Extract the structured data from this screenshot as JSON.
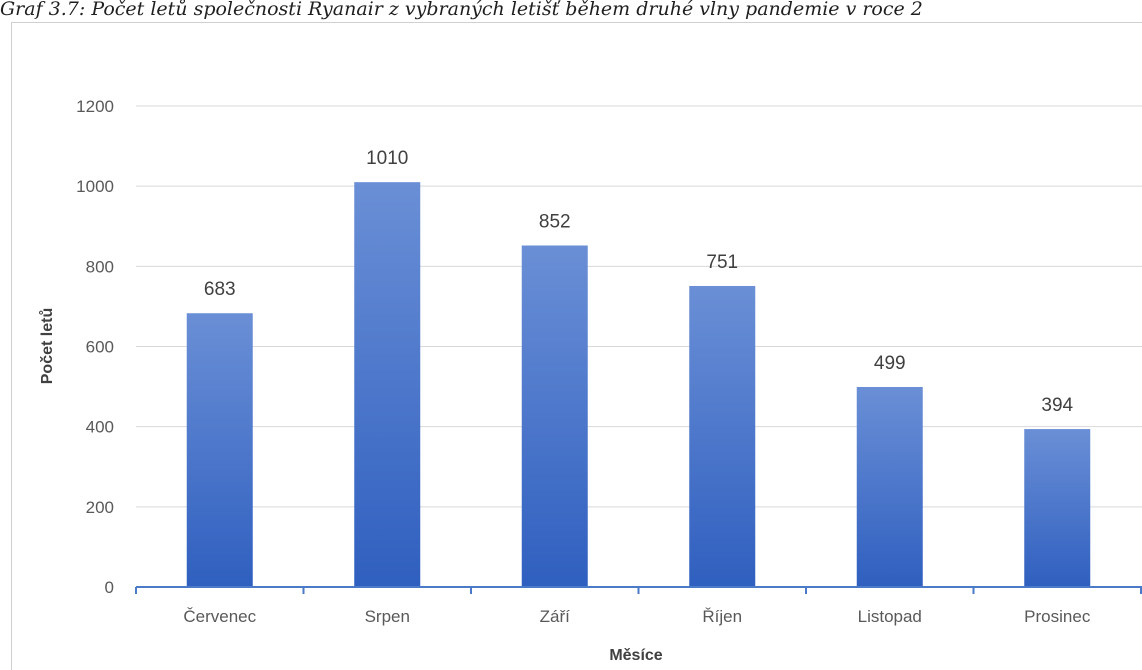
{
  "caption": "Graf 3.7: Počet letů společnosti Ryanair z vybraných letišť během druhé vlny pandemie v roce 2",
  "chart_data": {
    "type": "bar",
    "categories": [
      "Červenec",
      "Srpen",
      "Září",
      "Říjen",
      "Listopad",
      "Prosinec"
    ],
    "values": [
      683,
      1010,
      852,
      751,
      499,
      394
    ],
    "data_labels": [
      "683",
      "1010",
      "852",
      "751",
      "499",
      "394"
    ],
    "title": "",
    "xlabel": "Měsíce",
    "ylabel": "Počet letů",
    "ylim": [
      0,
      1200
    ],
    "yticks": [
      0,
      200,
      400,
      600,
      800,
      1000,
      1200
    ],
    "grid": true,
    "legend": "none",
    "colors": {
      "bar_top": "#6a8fd6",
      "bar_bottom": "#2f5fbf",
      "axis": "#4a7ac8",
      "grid": "#d9d9d9"
    }
  }
}
